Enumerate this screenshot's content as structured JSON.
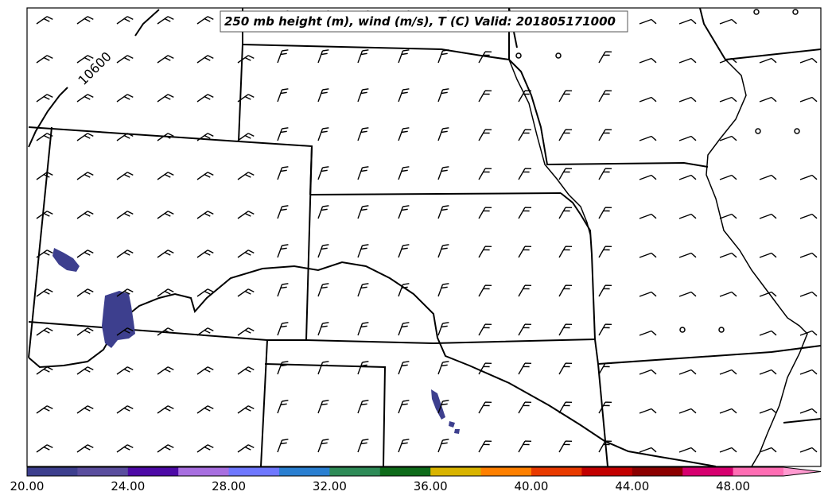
{
  "title": "250 mb height (m), wind (m/s), T (C) Valid: 201805171000",
  "contour_labels": [
    "10600"
  ],
  "colorbar": {
    "ticks": [
      "20.00",
      "24.00",
      "28.00",
      "32.00",
      "36.00",
      "40.00",
      "44.00",
      "48.00"
    ],
    "colors": [
      "#3d3f8e",
      "#5a4e9e",
      "#4d0aa6",
      "#a86fe0",
      "#6f78ff",
      "#2a7fd1",
      "#2e8b57",
      "#0e6b1a",
      "#d9b400",
      "#ff8000",
      "#e83a00",
      "#c20000",
      "#8b0000",
      "#d6006f",
      "#ff6eb4"
    ],
    "extend_color": "#ff9ad0"
  },
  "wind_barbs": "rows of wind barbs across the domain",
  "temperature_patches_color": "#3d3f8e"
}
